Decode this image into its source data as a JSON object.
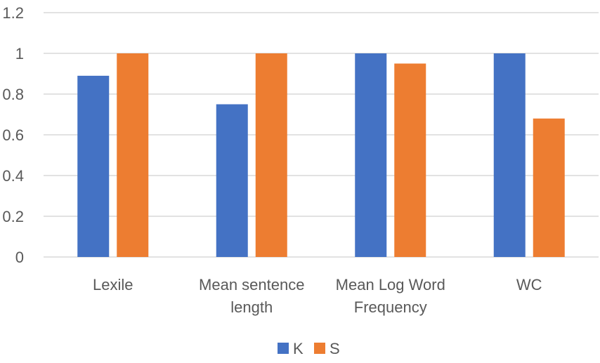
{
  "chart_data": {
    "type": "bar",
    "title": "",
    "xlabel": "",
    "ylabel": "",
    "categories": [
      [
        "Lexile"
      ],
      [
        "Mean sentence",
        "length"
      ],
      [
        "Mean Log Word",
        "Frequency"
      ],
      [
        "WC"
      ]
    ],
    "series": [
      {
        "name": "K",
        "color": "#4472C4",
        "values": [
          0.89,
          0.75,
          1.0,
          1.0
        ]
      },
      {
        "name": "S",
        "color": "#ED7D31",
        "values": [
          1.0,
          1.0,
          0.95,
          0.68
        ]
      }
    ],
    "ylim": [
      0,
      1.2
    ],
    "yticks": [
      "0",
      "0.2",
      "0.4",
      "0.6",
      "0.8",
      "1",
      "1.2"
    ],
    "ytick_values": [
      0,
      0.2,
      0.4,
      0.6,
      0.8,
      1.0,
      1.2
    ],
    "grid": true,
    "gridline_color": "#D9D9D9",
    "legend_position": "bottom"
  }
}
